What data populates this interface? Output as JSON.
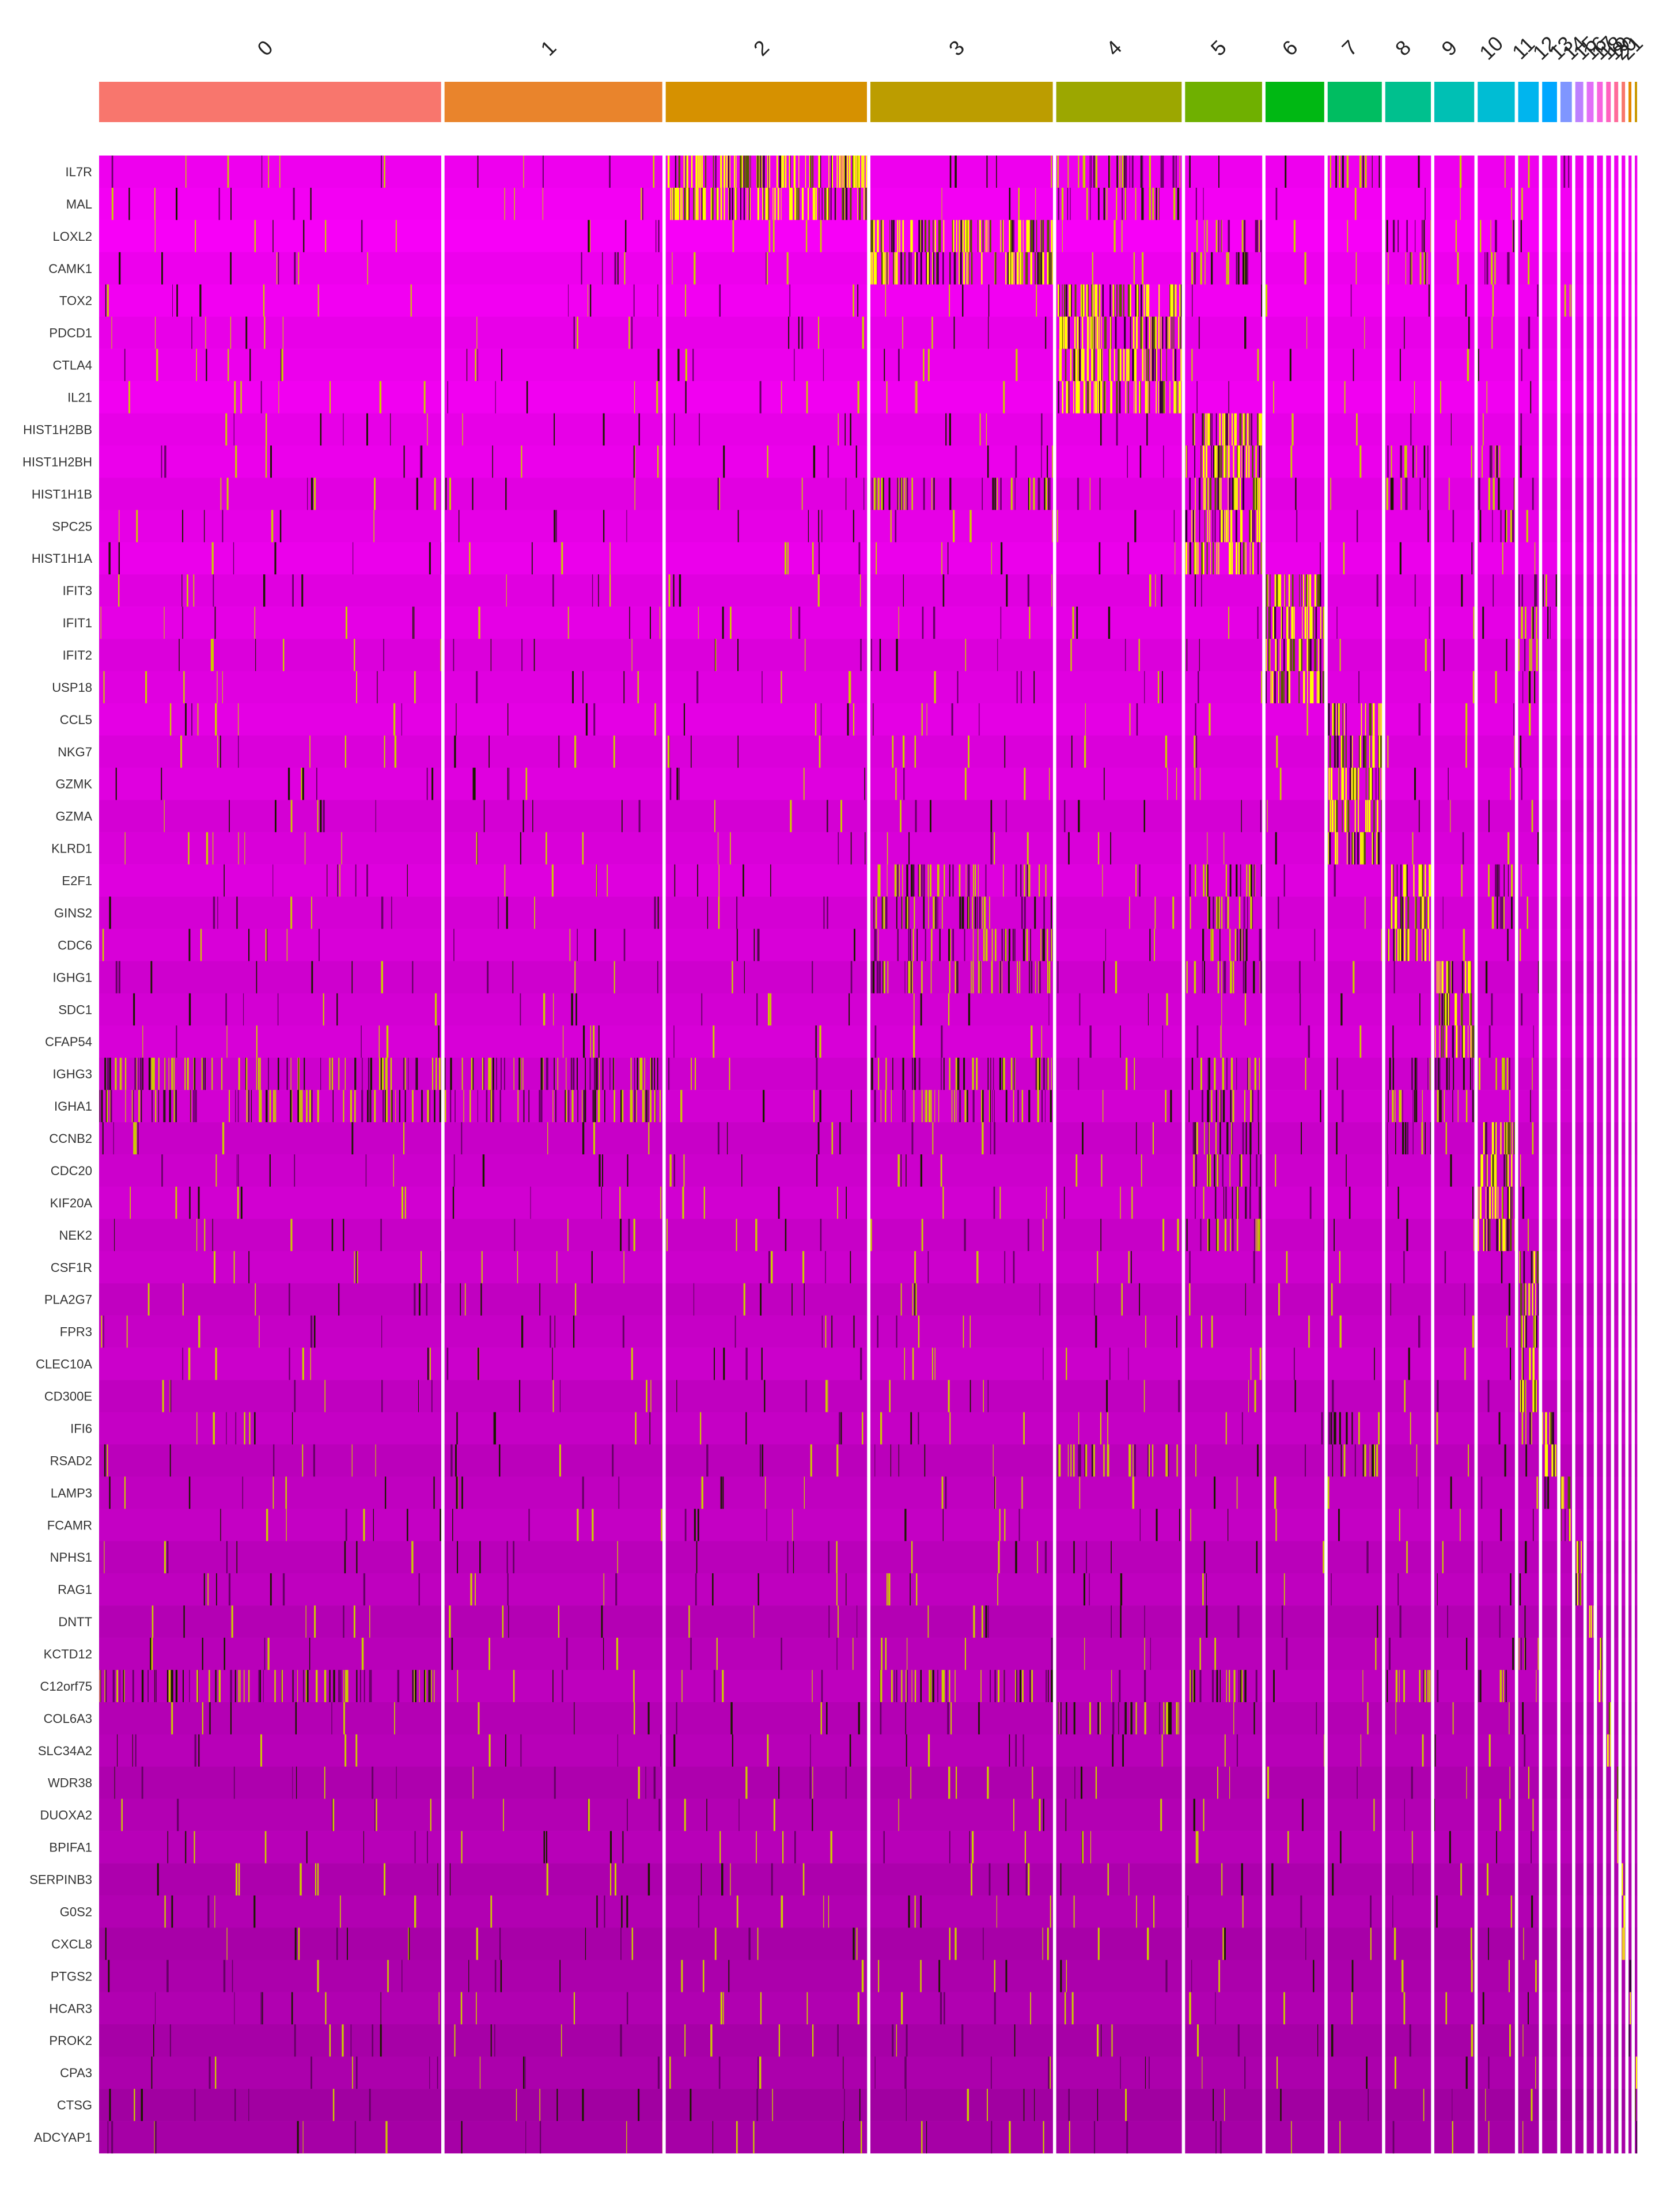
{
  "chart_data": {
    "type": "heatmap",
    "title": "",
    "xlabel": "",
    "ylabel": "",
    "genes": [
      "IL7R",
      "MAL",
      "LOXL2",
      "CAMK1",
      "TOX2",
      "PDCD1",
      "CTLA4",
      "IL21",
      "HIST1H2BB",
      "HIST1H2BH",
      "HIST1H1B",
      "SPC25",
      "HIST1H1A",
      "IFIT3",
      "IFIT1",
      "IFIT2",
      "USP18",
      "CCL5",
      "NKG7",
      "GZMK",
      "GZMA",
      "KLRD1",
      "E2F1",
      "GINS2",
      "CDC6",
      "IGHG1",
      "SDC1",
      "CFAP54",
      "IGHG3",
      "IGHA1",
      "CCNB2",
      "CDC20",
      "KIF20A",
      "NEK2",
      "CSF1R",
      "PLA2G7",
      "FPR3",
      "CLEC10A",
      "CD300E",
      "IFI6",
      "RSAD2",
      "LAMP3",
      "FCAMR",
      "NPHS1",
      "RAG1",
      "DNTT",
      "KCTD12",
      "C12orf75",
      "COL6A3",
      "SLC34A2",
      "WDR38",
      "DUOXA2",
      "BPIFA1",
      "SERPINB3",
      "G0S2",
      "CXCL8",
      "PTGS2",
      "HCAR3",
      "PROK2",
      "CPA3",
      "CTSG",
      "ADCYAP1"
    ],
    "clusters": [
      {
        "name": "0",
        "size": 600,
        "color": "#F8766D"
      },
      {
        "name": "1",
        "size": 382,
        "color": "#E9842C"
      },
      {
        "name": "2",
        "size": 353,
        "color": "#D69100"
      },
      {
        "name": "3",
        "size": 320,
        "color": "#BC9D00"
      },
      {
        "name": "4",
        "size": 220,
        "color": "#9CA700"
      },
      {
        "name": "5",
        "size": 135,
        "color": "#6FB000"
      },
      {
        "name": "6",
        "size": 103,
        "color": "#00B813"
      },
      {
        "name": "7",
        "size": 95,
        "color": "#00BD61"
      },
      {
        "name": "8",
        "size": 80,
        "color": "#00C08E"
      },
      {
        "name": "9",
        "size": 70,
        "color": "#00C0B4"
      },
      {
        "name": "10",
        "size": 65,
        "color": "#00BDD4"
      },
      {
        "name": "11",
        "size": 36,
        "color": "#00B5EE"
      },
      {
        "name": "12",
        "size": 26,
        "color": "#00A7FF"
      },
      {
        "name": "13",
        "size": 20,
        "color": "#7F96FF"
      },
      {
        "name": "14",
        "size": 14,
        "color": "#BC81FF"
      },
      {
        "name": "15",
        "size": 12,
        "color": "#E26EF7"
      },
      {
        "name": "16",
        "size": 10,
        "color": "#F863DF"
      },
      {
        "name": "17",
        "size": 8,
        "color": "#FF62BF"
      },
      {
        "name": "18",
        "size": 7,
        "color": "#FF6A9A"
      },
      {
        "name": "19",
        "size": 6,
        "color": "#F8766D"
      },
      {
        "name": "20",
        "size": 5,
        "color": "#E58700"
      },
      {
        "name": "21",
        "size": 4,
        "color": "#C99800"
      }
    ],
    "marker_gene_ranges": {
      "0": [
        0,
        0
      ],
      "1": [
        0,
        0
      ],
      "2": [
        0,
        1
      ],
      "3": [
        2,
        3
      ],
      "4": [
        4,
        7
      ],
      "5": [
        8,
        12
      ],
      "6": [
        13,
        16
      ],
      "7": [
        17,
        21
      ],
      "8": [
        22,
        24
      ],
      "9": [
        25,
        27
      ],
      "10": [
        30,
        33
      ],
      "11": [
        34,
        38
      ],
      "12": [
        39,
        40
      ],
      "13": [
        41,
        42
      ],
      "14": [
        43,
        44
      ],
      "15": [
        45,
        45
      ],
      "16": [
        46,
        47
      ],
      "17": [
        48,
        49
      ],
      "18": [
        50,
        52
      ],
      "19": [
        53,
        55
      ],
      "20": [
        56,
        58
      ],
      "21": [
        59,
        61
      ]
    },
    "extra_hits": {
      "0": [
        28,
        29,
        47
      ],
      "1": [
        29,
        28
      ],
      "3": [
        25,
        22,
        23,
        24,
        28,
        29,
        47,
        10
      ],
      "4": [
        0,
        1,
        48,
        40
      ],
      "5": [
        22,
        23,
        24,
        25,
        28,
        29,
        30,
        31,
        32,
        33,
        47,
        2,
        3
      ],
      "7": [
        0,
        39,
        40
      ],
      "8": [
        2,
        3,
        10,
        28,
        29,
        30,
        47,
        9
      ],
      "9": [
        28,
        29
      ],
      "10": [
        2,
        3,
        10,
        11,
        22,
        23,
        28,
        47,
        9
      ],
      "11": [
        13,
        14,
        15,
        16,
        46,
        39
      ],
      "12": [
        13,
        14,
        39,
        40,
        41
      ],
      "13": [
        0,
        4,
        42
      ],
      "16": [
        47
      ]
    },
    "color_scale": {
      "low": "#FF00FF",
      "mid": "#000000",
      "high": "#FFFF00"
    },
    "legend": "none"
  }
}
